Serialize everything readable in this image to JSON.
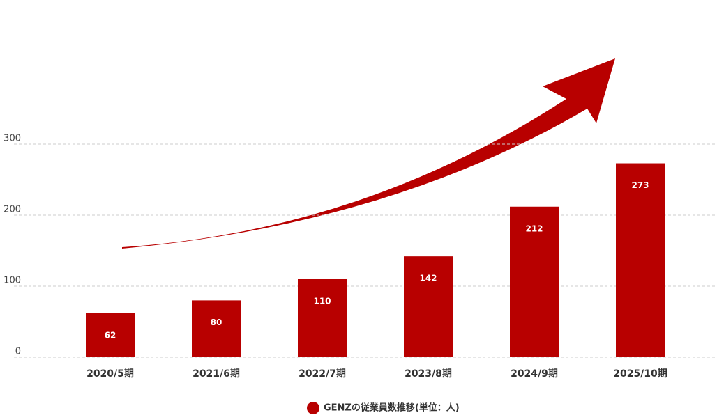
{
  "chart_data": {
    "type": "bar",
    "categories": [
      "2020/5期",
      "2021/6期",
      "2022/7期",
      "2023/8期",
      "2024/9期",
      "2025/10期"
    ],
    "series": [
      {
        "name": "GENZの従業員数推移(単位：人)",
        "color": "#b80000",
        "values": [
          62,
          80,
          110,
          142,
          212,
          273
        ]
      }
    ],
    "ylim": [
      0,
      500
    ],
    "yticks": [
      0,
      100,
      200,
      300
    ],
    "grid": true,
    "legend": "bottom"
  }
}
